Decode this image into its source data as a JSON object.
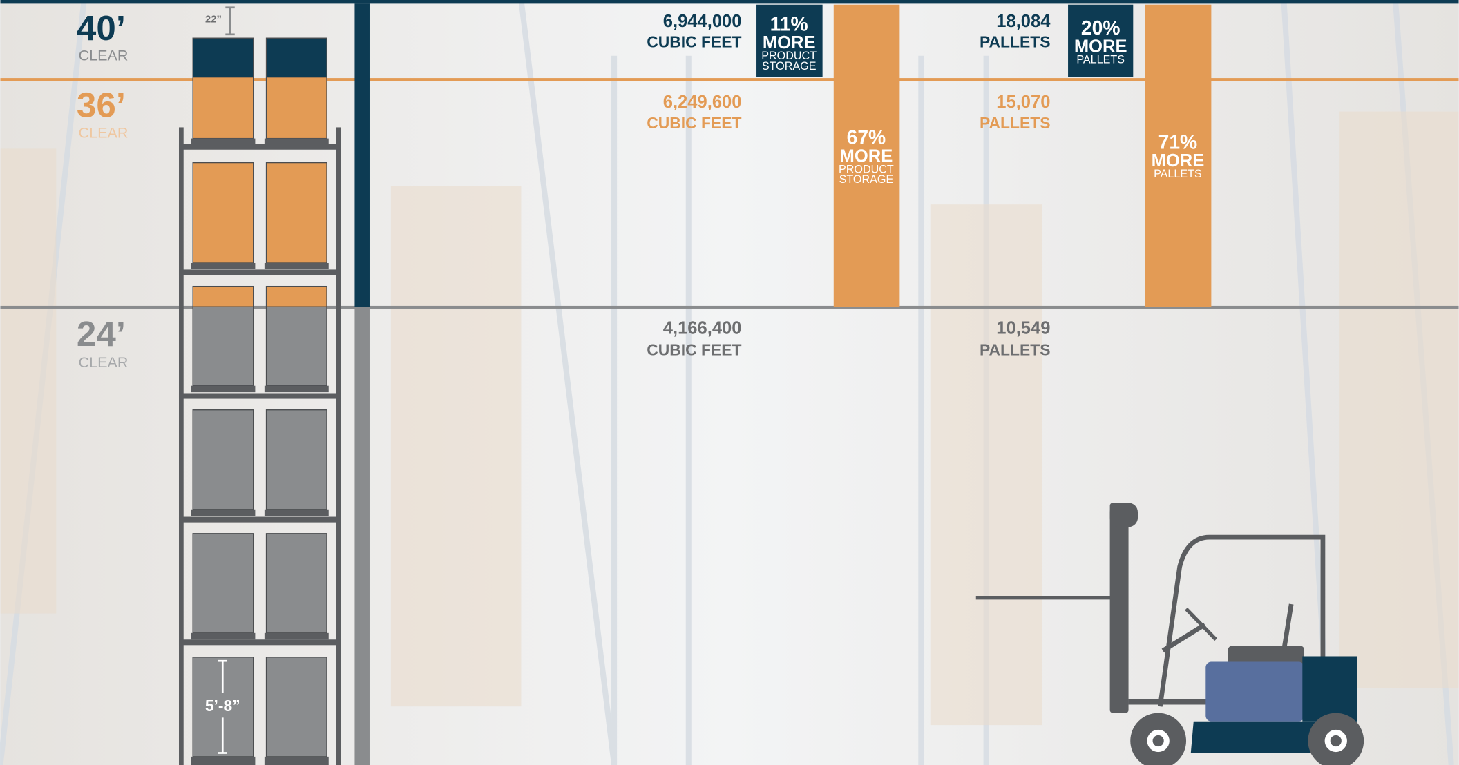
{
  "heights": [
    {
      "height": "40’",
      "label": "CLEAR"
    },
    {
      "height": "36’",
      "label": "CLEAR"
    },
    {
      "height": "24’",
      "label": "CLEAR"
    }
  ],
  "dimensions": {
    "top_gap": "22”",
    "pallet_height": "5’-8”"
  },
  "cubic_feet": [
    {
      "value": "6,944,000",
      "unit": "CUBIC FEET"
    },
    {
      "value": "6,249,600",
      "unit": "CUBIC FEET"
    },
    {
      "value": "4,166,400",
      "unit": "CUBIC FEET"
    }
  ],
  "pallets": [
    {
      "value": "18,084",
      "unit": "PALLETS"
    },
    {
      "value": "15,070",
      "unit": "PALLETS"
    },
    {
      "value": "10,549",
      "unit": "PALLETS"
    }
  ],
  "comparisons": [
    {
      "percent": "11%",
      "more": "MORE",
      "detail": [
        "PRODUCT",
        "STORAGE"
      ]
    },
    {
      "percent": "67%",
      "more": "MORE",
      "detail": [
        "PRODUCT",
        "STORAGE"
      ]
    },
    {
      "percent": "20%",
      "more": "MORE",
      "detail": [
        "PALLETS"
      ]
    },
    {
      "percent": "71%",
      "more": "MORE",
      "detail": [
        "PALLETS"
      ]
    }
  ]
}
